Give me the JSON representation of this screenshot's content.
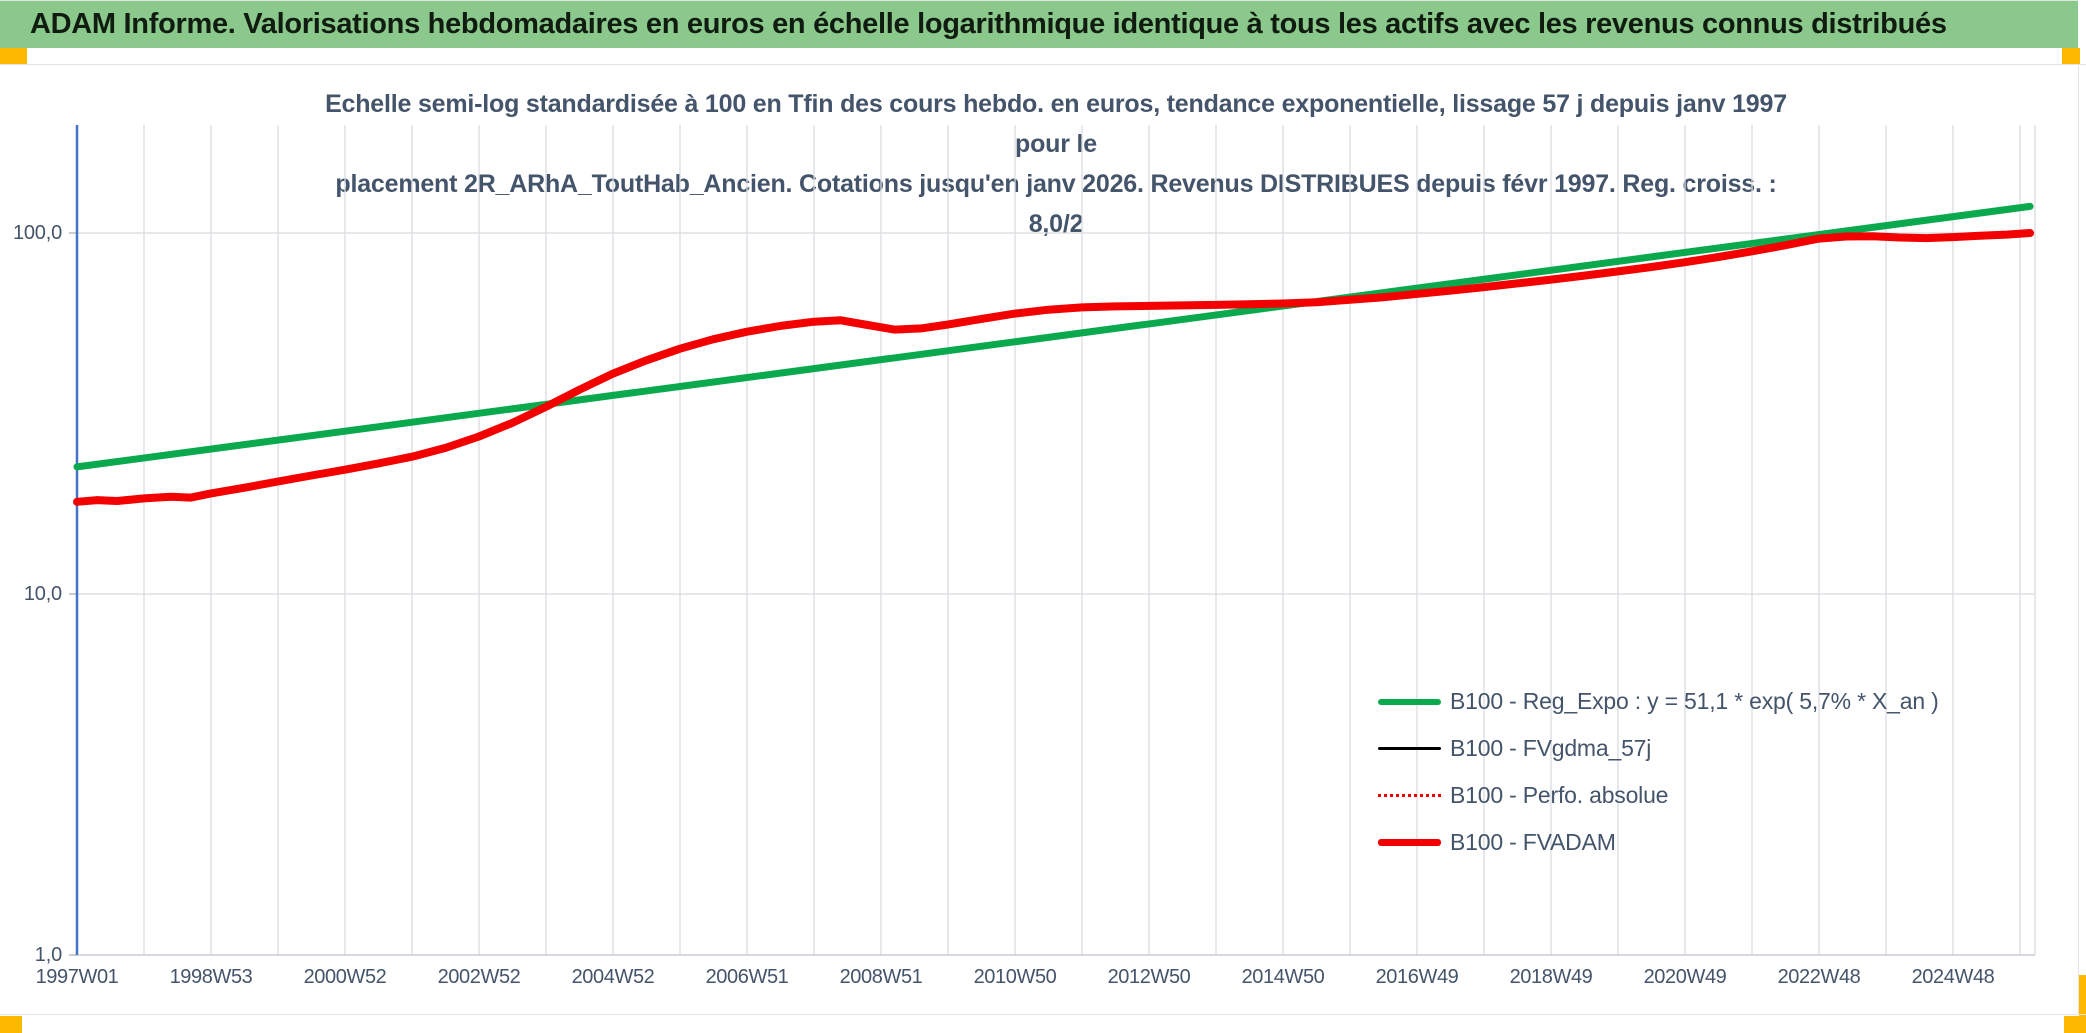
{
  "header": {
    "title": "ADAM Informe. Valorisations hebdomadaires en euros en échelle logarithmique identique à tous les actifs avec les revenus connus distribués"
  },
  "colors": {
    "header_bg": "#8BC88B",
    "accent_yellow": "#FCB900",
    "grid": "#D8DBE0",
    "axis_line_blue": "#4472C4",
    "axis_baseline": "#C9CDD4",
    "text": "#44546A",
    "series_green": "#0BA94E",
    "series_red": "#F30000",
    "series_black": "#000000"
  },
  "chart": {
    "title_line1": "Echelle semi-log standardisée à 100 en Tfin des cours hebdo. en euros, tendance exponentielle, lissage 57 j depuis janv 1997 pour le",
    "title_line2": "placement 2R_ARhA_ToutHab_Ancien. Cotations jusqu'en janv 2026. Revenus DISTRIBUES depuis févr 1997. Reg. croiss. : 8,0/2"
  },
  "chart_data": {
    "type": "line",
    "title": "Echelle semi-log standardisée à 100 en Tfin des cours hebdo. en euros, tendance exponentielle, lissage 57 j depuis janv 1997 pour le placement 2R_ARhA_ToutHab_Ancien. Cotations jusqu'en janv 2026. Revenus DISTRIBUES depuis févr 1997. Reg. croiss. : 8,0/2",
    "x_axis": {
      "labels": [
        "1997W01",
        "1998W53",
        "2000W52",
        "2002W52",
        "2004W52",
        "2006W51",
        "2008W51",
        "2010W50",
        "2012W50",
        "2014W50",
        "2016W49",
        "2018W49",
        "2020W49",
        "2022W48",
        "2024W48"
      ],
      "label_positions_years": [
        1997,
        1999,
        2001,
        2003,
        2005,
        2007,
        2009,
        2011,
        2013,
        2015,
        2017,
        2019,
        2021,
        2023,
        2025
      ],
      "gridline_every_years": 1,
      "range_years": [
        1997,
        2026.22
      ]
    },
    "y_axis": {
      "scale": "log10",
      "tick_labels": [
        "100,0",
        "10,0",
        "1,0"
      ],
      "tick_values": [
        100,
        10,
        1
      ],
      "range": [
        1,
        199
      ],
      "grid": true
    },
    "legend_position": "inside-bottom-right",
    "series": [
      {
        "name": "B100 - Reg_Expo : y = 51,1 * exp( 5,7% *  X_an )",
        "color": "#0BA94E",
        "width": 7,
        "style": "solid",
        "x": [
          1997.0,
          2026.15
        ],
        "y": [
          22.5,
          118.5
        ]
      },
      {
        "name": "B100 - FVgdma_57j",
        "color": "#000000",
        "width": 3,
        "style": "solid",
        "overlaps": "B100 - FVADAM"
      },
      {
        "name": "B100 - Perfo. absolue",
        "color": "#F30000",
        "width": 2.5,
        "style": "dotted",
        "overlaps": "B100 - FVADAM"
      },
      {
        "name": "B100 - FVADAM",
        "color": "#F30000",
        "width": 8,
        "style": "solid",
        "x": [
          1997.0,
          1997.3,
          1997.6,
          1998.0,
          1998.4,
          1998.7,
          1999.0,
          1999.5,
          2000.0,
          2000.5,
          2001.0,
          2001.5,
          2002.0,
          2002.5,
          2003.0,
          2003.5,
          2004.0,
          2004.5,
          2005.0,
          2005.5,
          2006.0,
          2006.5,
          2007.0,
          2007.5,
          2008.0,
          2008.4,
          2008.8,
          2009.2,
          2009.6,
          2010.0,
          2010.5,
          2011.0,
          2011.5,
          2012.0,
          2012.5,
          2013.0,
          2013.5,
          2014.0,
          2014.5,
          2015.0,
          2015.5,
          2016.0,
          2016.5,
          2017.0,
          2017.5,
          2018.0,
          2018.5,
          2019.0,
          2019.5,
          2020.0,
          2020.5,
          2021.0,
          2021.5,
          2022.0,
          2022.5,
          2023.0,
          2023.4,
          2023.8,
          2024.2,
          2024.6,
          2025.0,
          2025.4,
          2025.8,
          2026.15
        ],
        "y": [
          18.0,
          18.2,
          18.1,
          18.4,
          18.6,
          18.5,
          19.0,
          19.7,
          20.5,
          21.3,
          22.1,
          23.0,
          24.0,
          25.4,
          27.3,
          29.8,
          33.0,
          36.8,
          40.8,
          44.4,
          47.8,
          50.8,
          53.3,
          55.3,
          56.8,
          57.3,
          55.6,
          54.0,
          54.4,
          55.8,
          57.8,
          59.8,
          61.3,
          62.2,
          62.6,
          62.8,
          63.0,
          63.2,
          63.5,
          63.8,
          64.3,
          65.3,
          66.4,
          67.8,
          69.2,
          70.8,
          72.5,
          74.3,
          76.2,
          78.3,
          80.5,
          83.0,
          85.8,
          89.0,
          92.5,
          96.5,
          97.8,
          98.0,
          97.2,
          96.8,
          97.4,
          98.2,
          99.0,
          100.0
        ]
      }
    ]
  }
}
